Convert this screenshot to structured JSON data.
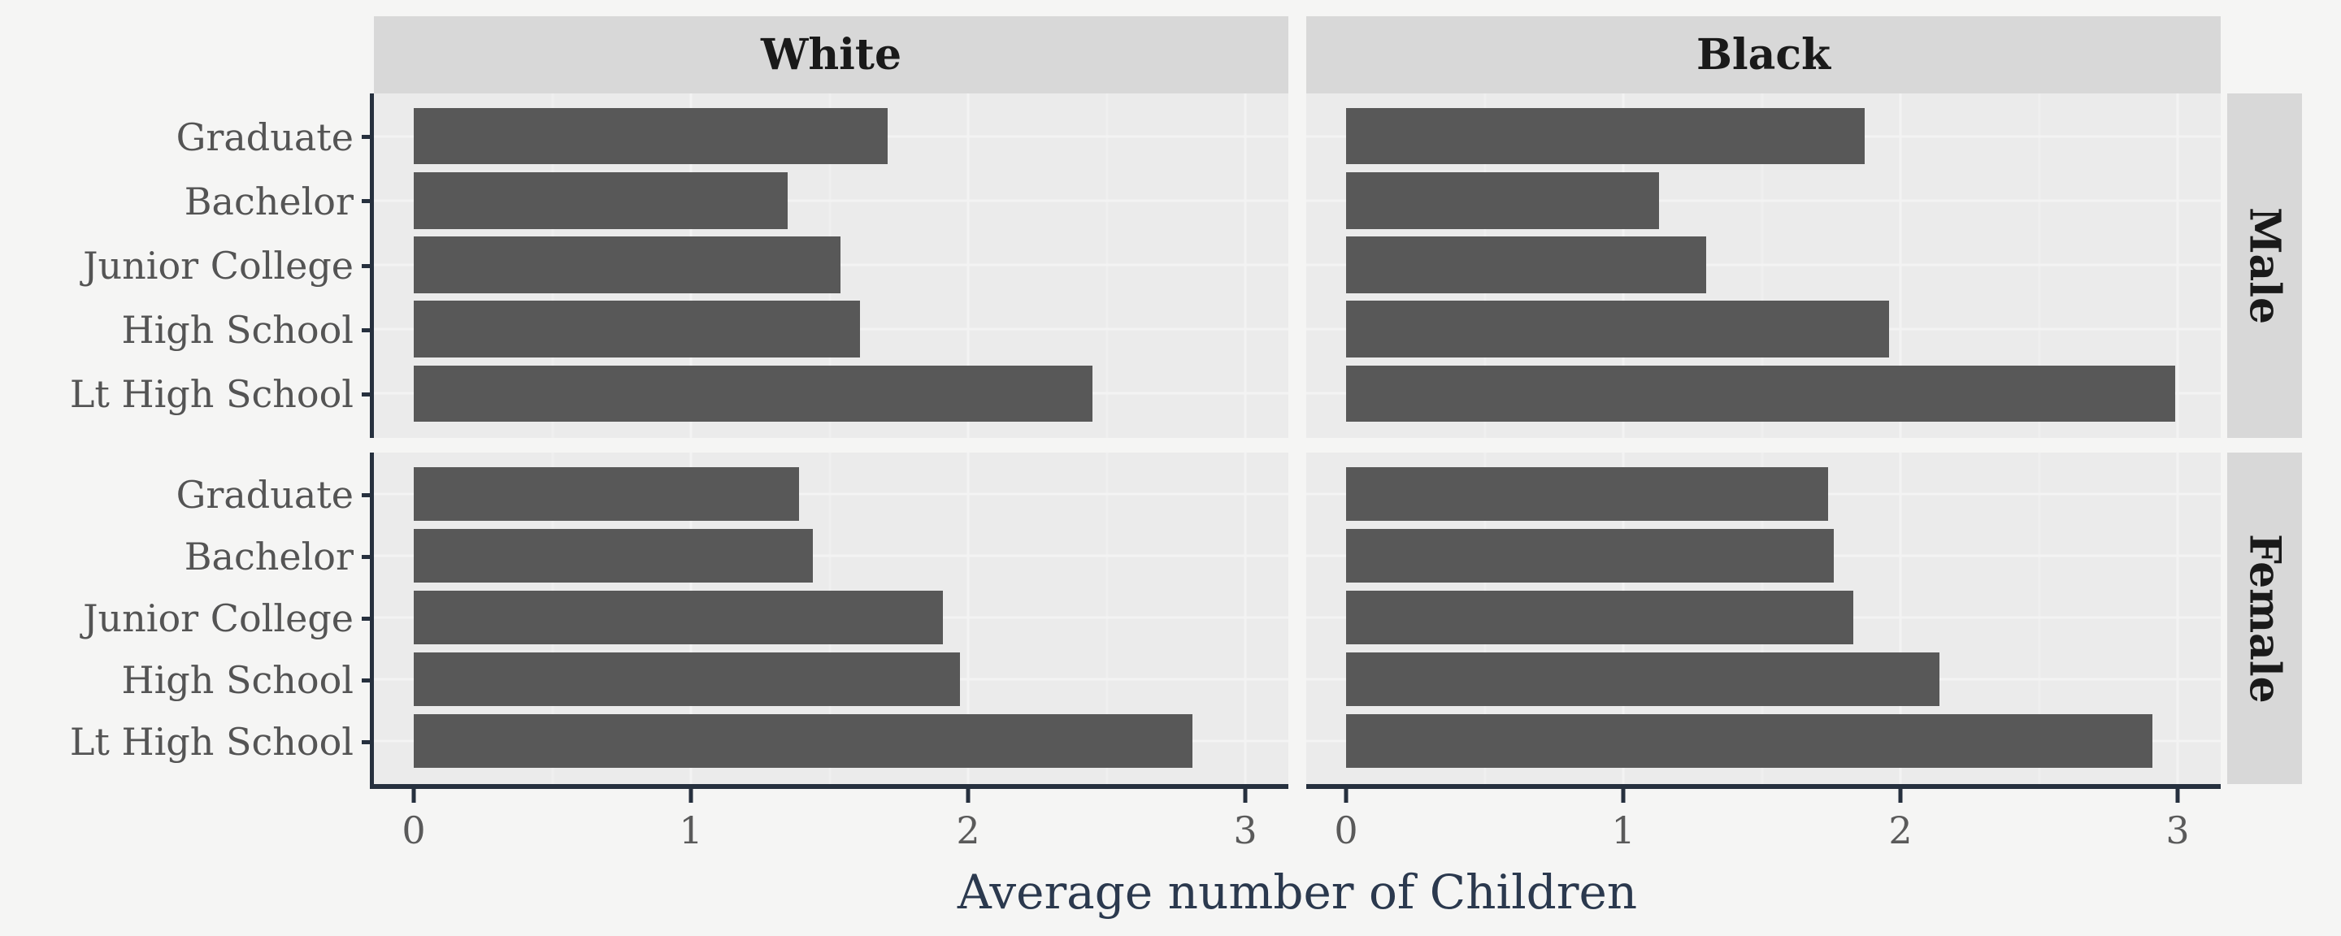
{
  "figure": {
    "background": "#f5f5f4",
    "panel_background": "#ebebeb",
    "strip_background": "#d8d8d8",
    "bar_color": "#585858",
    "axis_line_color": "#26303e",
    "gridline_major_color": "#f3f3f3",
    "gridline_minor_color": "#efefef",
    "tick_label_color": "#5a5a5a",
    "category_label_color": "#545454",
    "axis_title_color": "#2b394e"
  },
  "chart_data": {
    "type": "bar",
    "orientation": "horizontal",
    "title": "",
    "xlabel": "Average number of Children",
    "ylabel": "",
    "facet_columns": [
      "White",
      "Black"
    ],
    "facet_rows": [
      "Male",
      "Female"
    ],
    "categories": [
      "Graduate",
      "Bachelor",
      "Junior College",
      "High School",
      "Lt High School"
    ],
    "x_ticks": [
      "0",
      "1",
      "2",
      "3"
    ],
    "x_tick_values": [
      0,
      1,
      2,
      3
    ],
    "xlim": [
      0,
      3.15
    ],
    "grid": true,
    "legend": "none",
    "series": [
      {
        "facet_col": "White",
        "facet_row": "Male",
        "values": [
          1.71,
          1.35,
          1.54,
          1.61,
          2.45
        ]
      },
      {
        "facet_col": "Black",
        "facet_row": "Male",
        "values": [
          1.87,
          1.13,
          1.3,
          1.96,
          2.99
        ]
      },
      {
        "facet_col": "White",
        "facet_row": "Female",
        "values": [
          1.39,
          1.44,
          1.91,
          1.97,
          2.81
        ]
      },
      {
        "facet_col": "Black",
        "facet_row": "Female",
        "values": [
          1.74,
          1.76,
          1.83,
          2.14,
          2.91
        ]
      }
    ]
  }
}
